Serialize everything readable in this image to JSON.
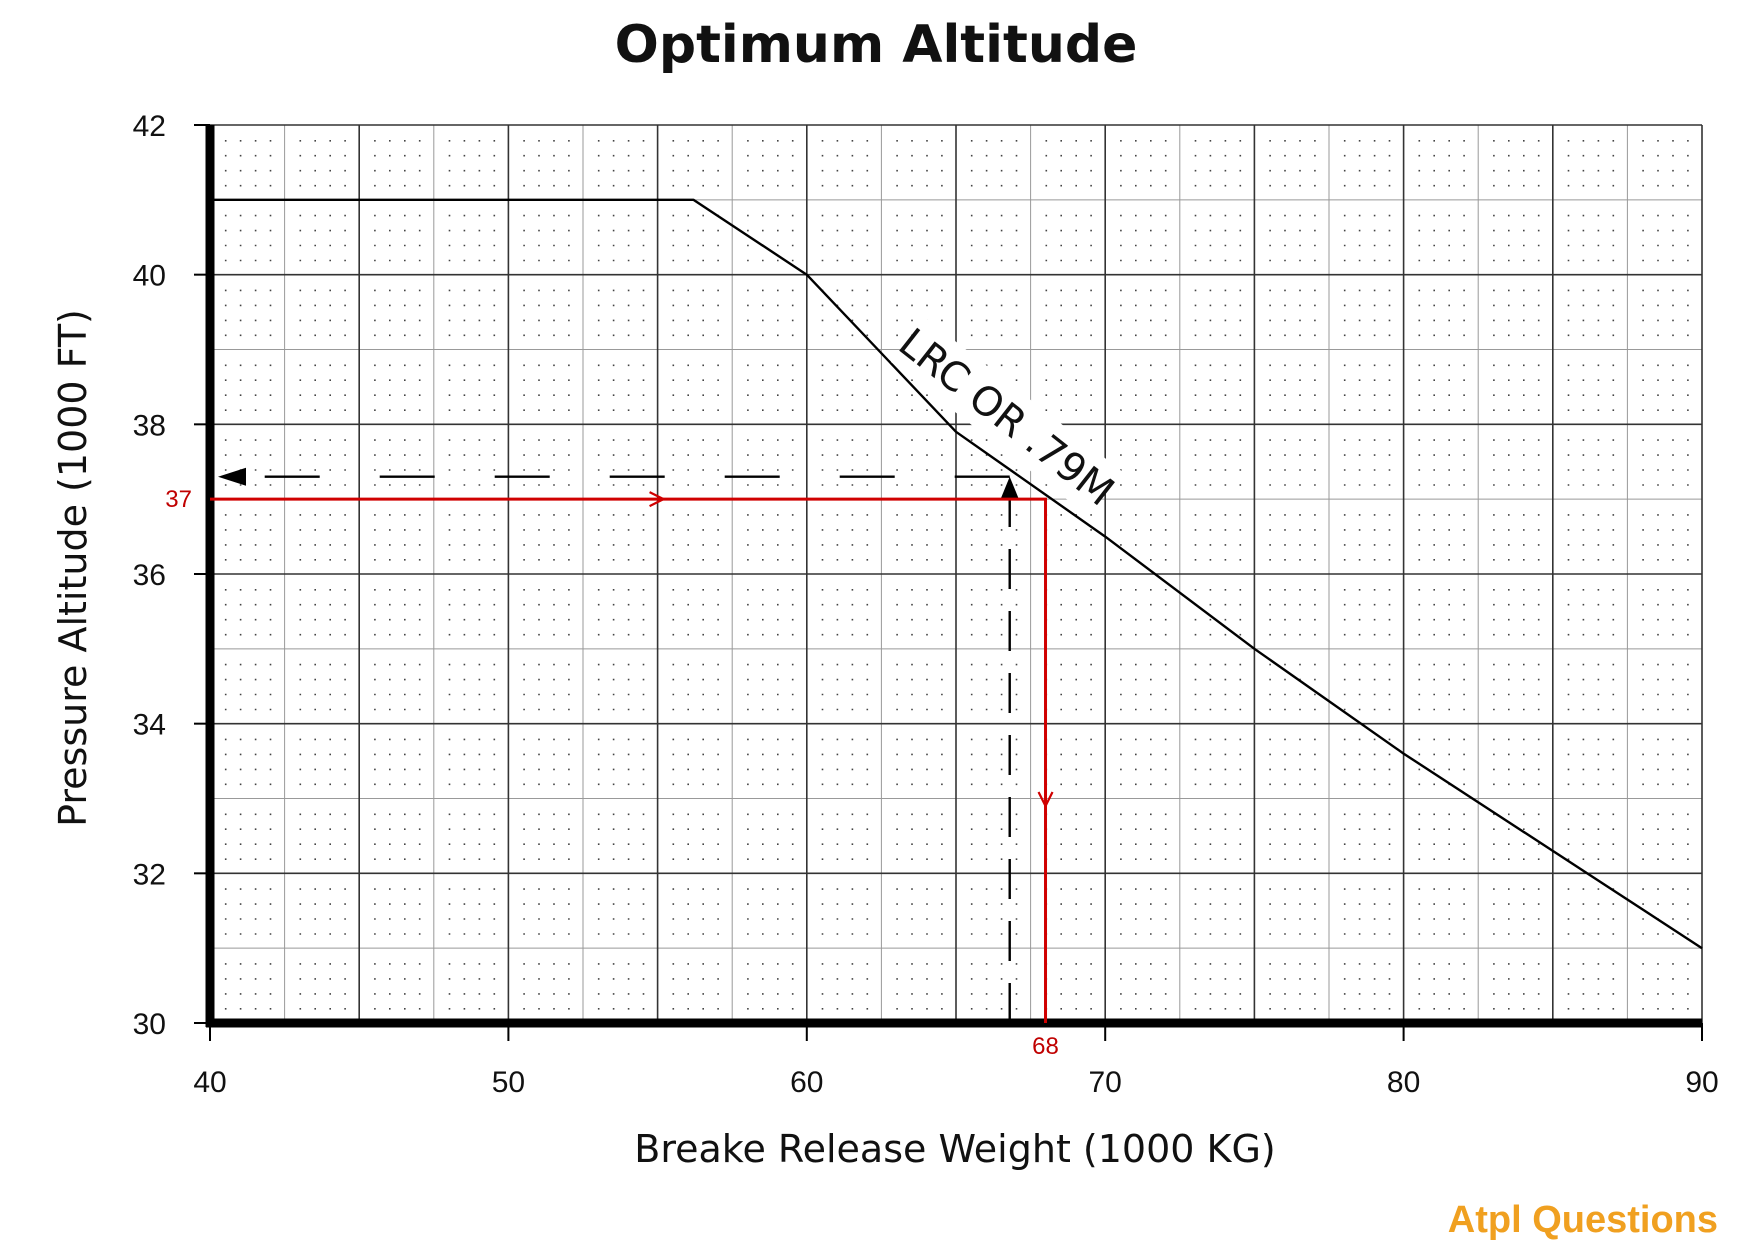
{
  "chart_data": {
    "type": "line",
    "title": "Optimum Altitude",
    "xlabel": "Breake Release Weight (1000 KG)",
    "ylabel": "Pressure Altitude (1000 FT)",
    "xlim": [
      40,
      90
    ],
    "ylim": [
      30,
      42
    ],
    "xticks": [
      40,
      50,
      60,
      70,
      80,
      90
    ],
    "yticks": [
      30,
      32,
      34,
      36,
      38,
      40,
      42
    ],
    "grid": true,
    "series": [
      {
        "name": "LRC OR .79M",
        "x": [
          40,
          56.2,
          60,
          65,
          70,
          75,
          80,
          85,
          90
        ],
        "y": [
          41,
          41,
          40.0,
          37.9,
          36.5,
          35.0,
          33.6,
          32.3,
          31.0
        ]
      }
    ],
    "reference_line": {
      "x": [
        40,
        66.8,
        66.8
      ],
      "y": [
        37.3,
        37.3,
        30
      ]
    },
    "solution_line": {
      "x": [
        40,
        68,
        68
      ],
      "y": [
        37,
        37,
        30
      ]
    },
    "annotations": [
      {
        "text": "37",
        "x": 40,
        "y": 37
      },
      {
        "text": "68",
        "x": 68,
        "y": 30
      }
    ]
  },
  "logo_text": "Atpl Questions",
  "colors": {
    "solution": "#d00000",
    "logo": "#f0a020",
    "grid_major": "#333333",
    "grid_minor": "#999999"
  }
}
